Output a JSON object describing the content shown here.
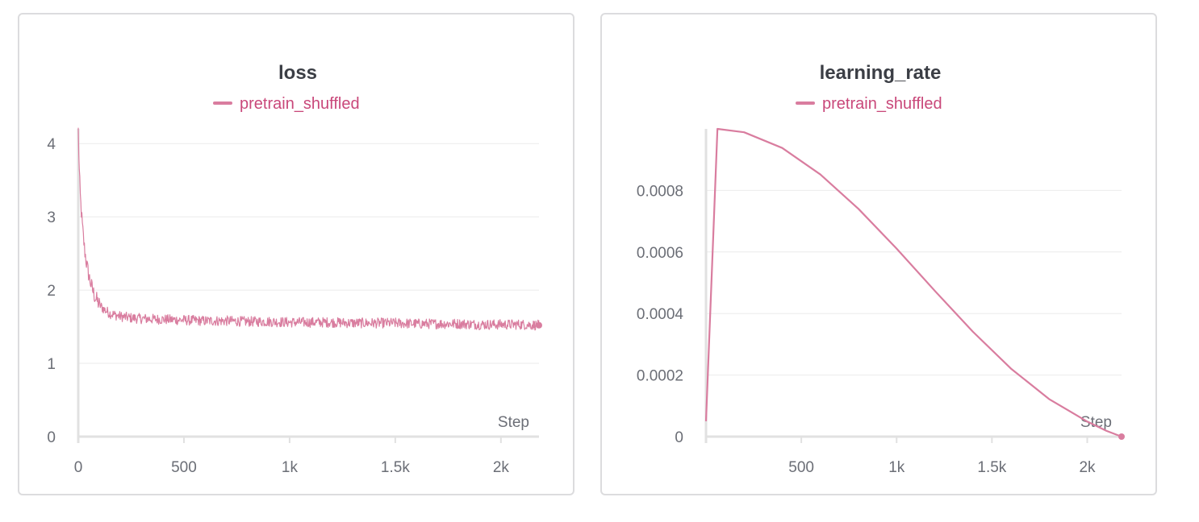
{
  "colors": {
    "series": "#d97d9f",
    "legend_text": "#c9487a",
    "grid": "#ebebeb",
    "axis": "#e1e1e1",
    "panel_border": "#dcdcde"
  },
  "chart_data": [
    {
      "type": "line",
      "title": "loss",
      "xlabel": "Step",
      "ylabel": "",
      "legend": {
        "position": "top-center",
        "entries": [
          "pretrain_shuffled"
        ]
      },
      "xlim": [
        0,
        2180
      ],
      "ylim": [
        0,
        4.2
      ],
      "x_ticks": [
        0,
        500,
        1000,
        1500,
        2000
      ],
      "x_tick_labels": [
        "0",
        "500",
        "1k",
        "1.5k",
        "2k"
      ],
      "y_ticks": [
        0,
        1,
        2,
        3,
        4
      ],
      "y_tick_labels": [
        "0",
        "1",
        "2",
        "3",
        "4"
      ],
      "grid": true,
      "series": [
        {
          "name": "pretrain_shuffled",
          "x": [
            0,
            5,
            10,
            20,
            30,
            40,
            50,
            60,
            70,
            80,
            100,
            120,
            150,
            200,
            250,
            300,
            400,
            500,
            600,
            700,
            800,
            900,
            1000,
            1100,
            1200,
            1300,
            1400,
            1500,
            1600,
            1700,
            1800,
            1900,
            2000,
            2100,
            2180
          ],
          "y": [
            4.18,
            3.6,
            3.25,
            2.85,
            2.55,
            2.35,
            2.2,
            2.08,
            1.98,
            1.9,
            1.8,
            1.74,
            1.68,
            1.64,
            1.62,
            1.61,
            1.6,
            1.59,
            1.58,
            1.58,
            1.57,
            1.57,
            1.56,
            1.56,
            1.56,
            1.55,
            1.55,
            1.55,
            1.54,
            1.54,
            1.54,
            1.53,
            1.53,
            1.53,
            1.52
          ],
          "noise": 0.07
        }
      ]
    },
    {
      "type": "line",
      "title": "learning_rate",
      "xlabel": "Step",
      "ylabel": "",
      "legend": {
        "position": "top-center",
        "entries": [
          "pretrain_shuffled"
        ]
      },
      "xlim": [
        0,
        2180
      ],
      "ylim": [
        0,
        0.001
      ],
      "x_ticks": [
        500,
        1000,
        1500,
        2000
      ],
      "x_tick_labels": [
        "500",
        "1k",
        "1.5k",
        "2k"
      ],
      "y_ticks": [
        0,
        0.0002,
        0.0004,
        0.0006,
        0.0008
      ],
      "y_tick_labels": [
        "0",
        "0.0002",
        "0.0004",
        "0.0006",
        "0.0008"
      ],
      "grid": true,
      "series": [
        {
          "name": "pretrain_shuffled",
          "x": [
            0,
            60,
            200,
            400,
            600,
            800,
            1000,
            1200,
            1400,
            1600,
            1800,
            2000,
            2100,
            2180
          ],
          "y": [
            5e-05,
            0.001,
            0.000989,
            0.000938,
            0.000852,
            0.00074,
            0.000611,
            0.000474,
            0.000341,
            0.000221,
            0.000122,
            4.9e-05,
            1.9e-05,
            0.0
          ]
        }
      ]
    }
  ]
}
